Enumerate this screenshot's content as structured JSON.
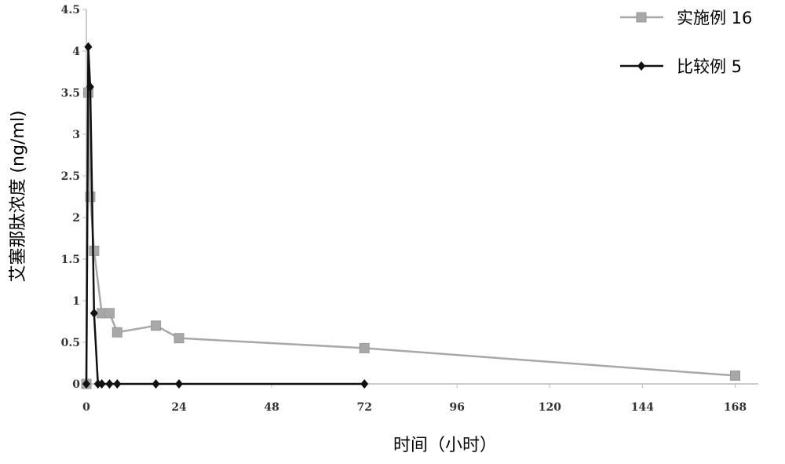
{
  "chart_data": {
    "type": "line",
    "x_label": "时间（小时）",
    "y_label": "艾塞那肽浓度 (ng/ml)",
    "xlim": [
      0,
      174
    ],
    "xticks": [
      0,
      24,
      48,
      72,
      96,
      120,
      144,
      168
    ],
    "ylim": [
      0,
      4.5
    ],
    "yticks": [
      0,
      0.5,
      1,
      1.5,
      2,
      2.5,
      3,
      3.5,
      4,
      4.5
    ],
    "legend": "top-right",
    "series": [
      {
        "name": "实施例 16",
        "color": "#a8a8a8",
        "marker": "square",
        "x": [
          0,
          0.5,
          1,
          2,
          4,
          6,
          8,
          18,
          24,
          72,
          168
        ],
        "values": [
          0,
          3.5,
          2.25,
          1.6,
          0.85,
          0.85,
          0.62,
          0.7,
          0.55,
          0.43,
          0.1
        ]
      },
      {
        "name": "比较例 5",
        "color": "#111111",
        "marker": "diamond",
        "x": [
          0,
          0.5,
          1,
          2,
          3,
          4,
          6,
          8,
          18,
          24,
          72
        ],
        "values": [
          0,
          4.05,
          3.57,
          0.85,
          0,
          0,
          0,
          0,
          0,
          0,
          0
        ]
      }
    ]
  }
}
